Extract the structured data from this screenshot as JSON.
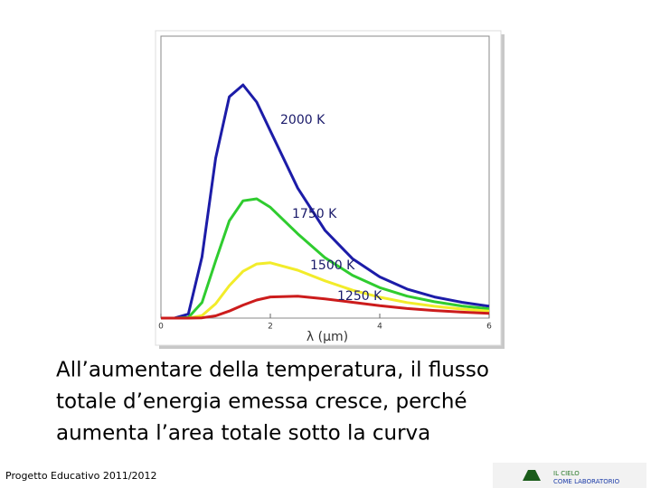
{
  "chart_data": {
    "type": "line",
    "x_label": "λ (μm)",
    "x": [
      0,
      0.25,
      0.5,
      0.75,
      1,
      1.25,
      1.5,
      1.75,
      2,
      2.5,
      3,
      3.5,
      4,
      4.5,
      5,
      5.5,
      6
    ],
    "xlim": [
      0,
      6
    ],
    "xticks": [
      0,
      2,
      4,
      6
    ],
    "ylim": [
      0,
      100
    ],
    "series": [
      {
        "name": "2000 K",
        "color": "#1c1ca8",
        "values": [
          0,
          0,
          1.4,
          21.7,
          56.7,
          78.5,
          82.7,
          76.6,
          66.4,
          46.1,
          31.1,
          21.1,
          14.6,
          10.3,
          7.5,
          5.6,
          4.2
        ]
      },
      {
        "name": "1750 K",
        "color": "#2fcc2f",
        "values": [
          0,
          0,
          0.2,
          5.5,
          20.3,
          34.5,
          41.6,
          42.3,
          39.3,
          29.9,
          21.4,
          15.2,
          10.8,
          7.8,
          5.8,
          4.3,
          3.3
        ]
      },
      {
        "name": "1500 K",
        "color": "#f2ec2a",
        "values": [
          0,
          0,
          0,
          0.9,
          5.1,
          11.5,
          16.6,
          19.2,
          19.6,
          17.0,
          13.2,
          9.9,
          7.4,
          5.5,
          4.2,
          3.2,
          2.5
        ]
      },
      {
        "name": "1250 K",
        "color": "#cc1c1c",
        "values": [
          0,
          0,
          0,
          0.1,
          0.8,
          2.5,
          4.6,
          6.4,
          7.5,
          7.8,
          6.8,
          5.6,
          4.4,
          3.4,
          2.7,
          2.1,
          1.7
        ]
      }
    ]
  },
  "caption": [
    "All’aumentare della temperatura, il flusso",
    "totale d’energia emessa cresce, perché",
    "aumenta l’area totale sotto la curva"
  ],
  "footer": "Progetto Educativo 2011/2012",
  "logo": [
    "IL CIELO",
    "COME LABORATORIO"
  ]
}
